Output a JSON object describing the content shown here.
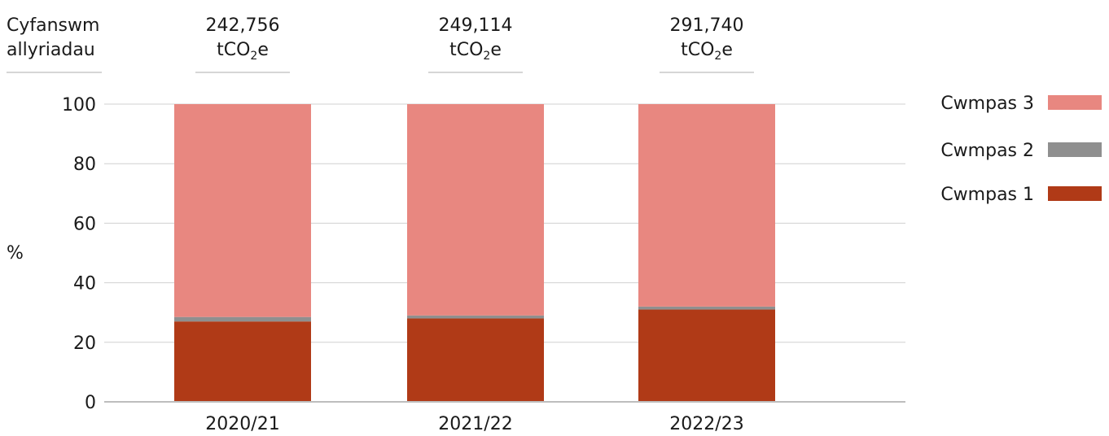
{
  "header": {
    "label_line1": "Cyfanswm",
    "label_line2": "allyriadau"
  },
  "totals": [
    {
      "value": "242,756",
      "unit_prefix": "tCO",
      "unit_sub": "2",
      "unit_suffix": "e"
    },
    {
      "value": "249,114",
      "unit_prefix": "tCO",
      "unit_sub": "2",
      "unit_suffix": "e"
    },
    {
      "value": "291,740",
      "unit_prefix": "tCO",
      "unit_sub": "2",
      "unit_suffix": "e"
    }
  ],
  "chart_data": {
    "type": "bar",
    "stacked": true,
    "categories": [
      "2020/21",
      "2021/22",
      "2022/23"
    ],
    "series": [
      {
        "name": "Cwmpas 1",
        "values": [
          27,
          28,
          31
        ],
        "color": "#b03a17"
      },
      {
        "name": "Cwmpas 2",
        "values": [
          1.5,
          1,
          1
        ],
        "color": "#8f8f8f"
      },
      {
        "name": "Cwmpas 3",
        "values": [
          71.5,
          71,
          68
        ],
        "color": "#e88780"
      }
    ],
    "title": "",
    "xlabel": "",
    "ylabel": "%",
    "ylim": [
      0,
      100
    ],
    "yticks": [
      0,
      20,
      40,
      60,
      80,
      100
    ],
    "grid": true,
    "legend_position": "right",
    "legend_order": [
      "Cwmpas 3",
      "Cwmpas 2",
      "Cwmpas 1"
    ]
  }
}
